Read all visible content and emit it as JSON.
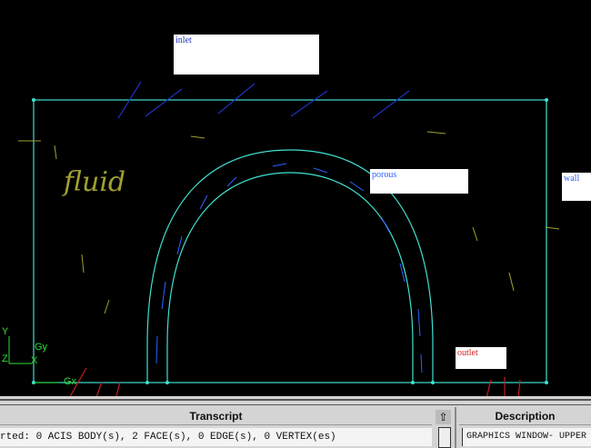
{
  "graphics": {
    "labels": {
      "inlet": "inlet",
      "porous": "porous",
      "wall": "wall",
      "outlet": "outlet",
      "fluid": "fluid"
    },
    "axes": {
      "y": "Y",
      "z": "Z",
      "x": "X",
      "gy": "Gy",
      "gx": "Gx"
    },
    "colors": {
      "geometry": "#40e0d0",
      "inlet_marks": "#2030c0",
      "outlet_marks": "#c02020",
      "porous_marks": "#3060ff",
      "fluid_marks": "#a0a030"
    }
  },
  "transcript": {
    "title": "Transcript",
    "line": "rted: 0 ACIS BODY(s), 2 FACE(s), 0 EDGE(s), 0 VERTEX(es)"
  },
  "description": {
    "title": "Description",
    "line": "GRAPHICS WINDOW- UPPER"
  }
}
